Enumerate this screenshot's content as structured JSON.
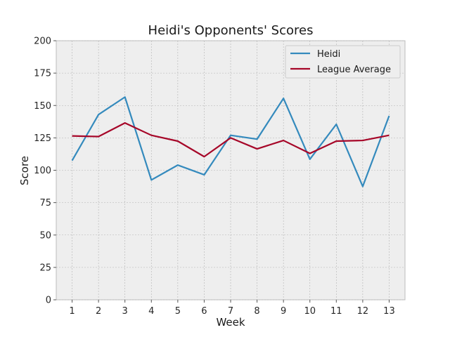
{
  "chart_data": {
    "type": "line",
    "title": "Heidi's Opponents' Scores",
    "xlabel": "Week",
    "ylabel": "Score",
    "x": [
      1,
      2,
      3,
      4,
      5,
      6,
      7,
      8,
      9,
      10,
      11,
      12,
      13
    ],
    "xlim": [
      0.4,
      13.6
    ],
    "ylim": [
      0,
      200
    ],
    "yticks": [
      0,
      25,
      50,
      75,
      100,
      125,
      150,
      175,
      200
    ],
    "grid": true,
    "legend_position": "top-right",
    "series": [
      {
        "name": "Heidi",
        "color": "#348abd",
        "values": [
          107.5,
          143,
          156.5,
          92.5,
          104,
          96.5,
          127,
          124,
          155.5,
          108.5,
          135.5,
          87.5,
          142
        ]
      },
      {
        "name": "League Average",
        "color": "#a60628",
        "values": [
          126.5,
          126,
          136.5,
          127,
          122.5,
          110.5,
          125,
          116.5,
          123,
          113,
          122.5,
          123,
          127
        ]
      }
    ]
  }
}
